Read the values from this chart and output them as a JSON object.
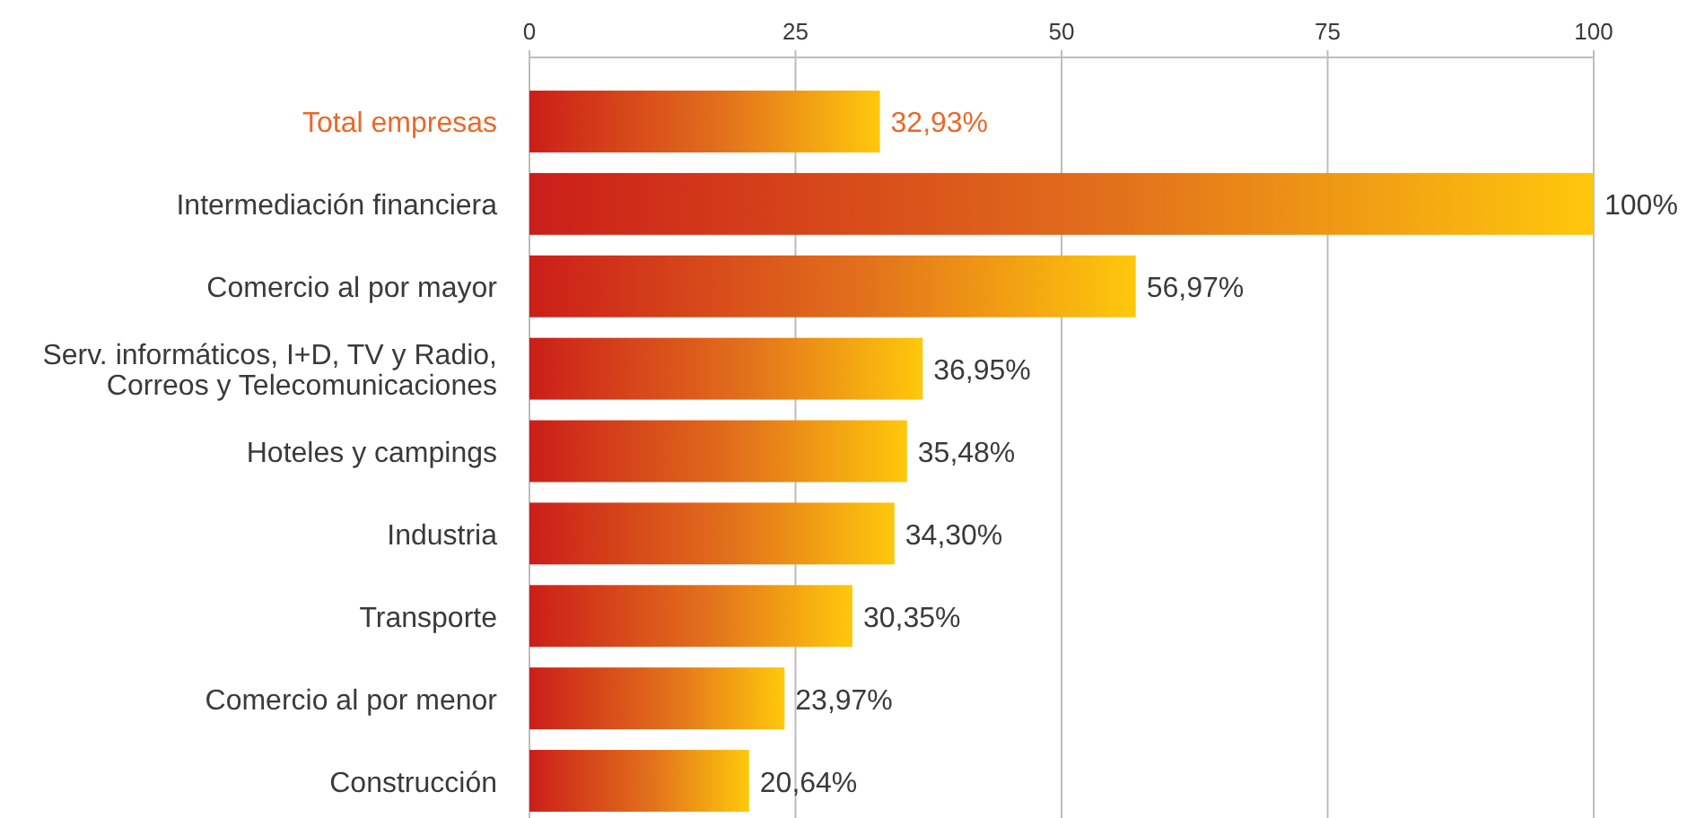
{
  "chart_data": {
    "type": "bar",
    "orientation": "horizontal",
    "categories": [
      "Total empresas",
      "Intermediación financiera",
      "Comercio al por mayor",
      "Serv. informáticos, I+D, TV y Radio,\nCorreos y Telecomunicaciones",
      "Hoteles y campings",
      "Industria",
      "Transporte",
      "Comercio al por menor",
      "Construcción"
    ],
    "values": [
      32.93,
      100,
      56.97,
      36.95,
      35.48,
      34.3,
      30.35,
      23.97,
      20.64
    ],
    "value_labels": [
      "32,93%",
      "100%",
      "56,97%",
      "36,95%",
      "35,48%",
      "34,30%",
      "30,35%",
      "23,97%",
      "20,64%"
    ],
    "color": "#e2701c",
    "xlim": [
      0,
      100
    ],
    "xticks": [
      0,
      25,
      50,
      75,
      100
    ],
    "grid": "x"
  }
}
